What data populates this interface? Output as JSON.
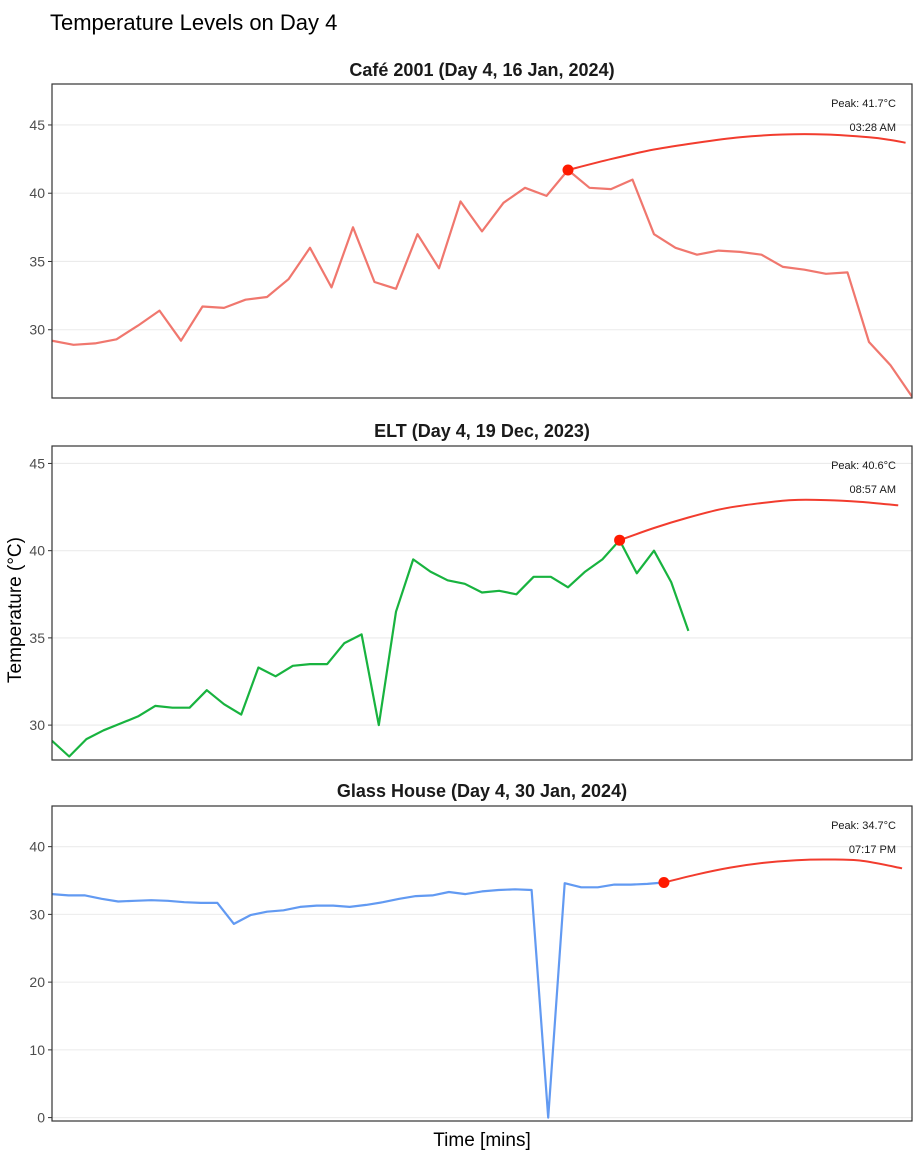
{
  "chart_data": {
    "type": "line",
    "title": "Temperature Levels on Day 4",
    "xlabel": "Time [mins]",
    "ylabel": "Temperature (°C)",
    "grid": true,
    "colors": {
      "trend": "#f23c2e",
      "peak_marker": "#ff1a00"
    },
    "panels": [
      {
        "name": "cafe",
        "title": "Café 2001 (Day 4, 16 Jan, 2024)",
        "color": "#f0776e",
        "ylim": [
          25,
          48
        ],
        "yticks": [
          30,
          35,
          40,
          45
        ],
        "xlim": [
          0,
          40
        ],
        "values": [
          29.2,
          28.9,
          29.0,
          29.3,
          30.3,
          31.4,
          29.2,
          31.7,
          31.6,
          32.2,
          32.4,
          33.7,
          36.0,
          33.1,
          37.5,
          33.5,
          33.0,
          37.0,
          34.5,
          39.4,
          37.2,
          39.3,
          40.4,
          39.8,
          41.7,
          40.4,
          40.3,
          41.0,
          37.0,
          36.0,
          35.5,
          35.8,
          35.7,
          35.5,
          34.6,
          34.4,
          34.1,
          34.2,
          29.1,
          27.4,
          25.1
        ],
        "peak": {
          "index": 24,
          "value": 41.7,
          "label": "Peak: 41.7°C",
          "time": "03:28 AM"
        },
        "trend": [
          [
            24,
            41.7
          ],
          [
            26,
            42.5
          ],
          [
            28,
            43.2
          ],
          [
            30,
            43.7
          ],
          [
            32,
            44.1
          ],
          [
            34,
            44.3
          ],
          [
            36,
            44.3
          ],
          [
            38,
            44.1
          ],
          [
            39,
            43.9
          ],
          [
            39.7,
            43.7
          ]
        ]
      },
      {
        "name": "elt",
        "title": "ELT (Day 4, 19 Dec, 2023)",
        "color": "#18b33f",
        "ylim": [
          28,
          46
        ],
        "yticks": [
          30,
          35,
          40,
          45
        ],
        "xlim": [
          0,
          50
        ],
        "values": [
          29.1,
          28.2,
          29.2,
          29.7,
          30.1,
          30.5,
          31.1,
          31.0,
          31.0,
          32.0,
          31.2,
          30.6,
          33.3,
          32.8,
          33.4,
          33.5,
          33.5,
          34.7,
          35.2,
          30.0,
          36.5,
          39.5,
          38.8,
          38.3,
          38.1,
          37.6,
          37.7,
          37.5,
          38.5,
          38.5,
          37.9,
          38.8,
          39.5,
          40.6,
          38.7,
          40.0,
          38.2,
          35.4
        ],
        "peak": {
          "index": 33,
          "value": 40.6,
          "label": "Peak: 40.6°C",
          "time": "08:57 AM"
        },
        "trend": [
          [
            33,
            40.6
          ],
          [
            35,
            41.3
          ],
          [
            37,
            41.9
          ],
          [
            39,
            42.4
          ],
          [
            41,
            42.7
          ],
          [
            43,
            42.9
          ],
          [
            45,
            42.9
          ],
          [
            47,
            42.8
          ],
          [
            49.2,
            42.6
          ]
        ]
      },
      {
        "name": "glass-house",
        "title": "Glass House (Day 4, 30 Jan, 2024)",
        "color": "#629af2",
        "ylim": [
          -0.5,
          46
        ],
        "yticks": [
          0,
          10,
          20,
          30,
          40
        ],
        "xlim": [
          0,
          52
        ],
        "values": [
          33.0,
          32.8,
          32.8,
          32.3,
          31.9,
          32.0,
          32.1,
          32.0,
          31.8,
          31.7,
          31.7,
          28.6,
          29.9,
          30.4,
          30.6,
          31.1,
          31.3,
          31.3,
          31.1,
          31.4,
          31.8,
          32.3,
          32.7,
          32.8,
          33.3,
          33.0,
          33.4,
          33.6,
          33.7,
          33.6,
          0.0,
          34.6,
          34.0,
          34.0,
          34.4,
          34.4,
          34.5,
          34.7
        ],
        "peak": {
          "index": 37,
          "value": 34.7,
          "label": "Peak: 34.7°C",
          "time": "07:17 PM"
        },
        "trend": [
          [
            37,
            34.7
          ],
          [
            39,
            35.9
          ],
          [
            41,
            36.9
          ],
          [
            43,
            37.6
          ],
          [
            45,
            38.0
          ],
          [
            47,
            38.1
          ],
          [
            49,
            37.9
          ],
          [
            51.4,
            36.8
          ]
        ]
      }
    ]
  }
}
